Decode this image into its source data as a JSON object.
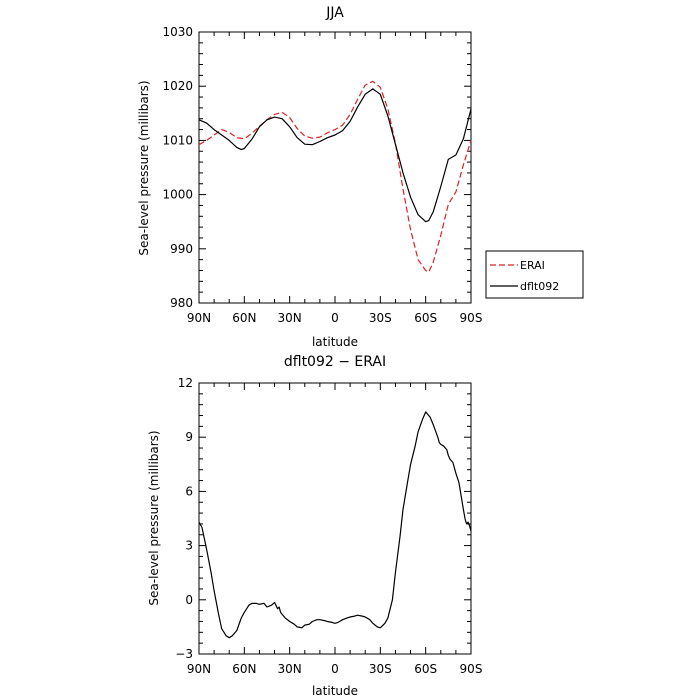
{
  "chart_data": [
    {
      "type": "line",
      "title": "JJA",
      "xlabel": "latitude",
      "ylabel": "Sea-level pressure (millibars)",
      "ylim": [
        980,
        1030
      ],
      "yticks": [
        980,
        990,
        1000,
        1010,
        1020,
        1030
      ],
      "xlim": [
        90,
        -90
      ],
      "xticks": [
        90,
        60,
        30,
        0,
        -30,
        -60,
        -90
      ],
      "xtick_labels": [
        "90N",
        "60N",
        "30N",
        "0",
        "30S",
        "60S",
        "90S"
      ],
      "grid": false,
      "legend": "right",
      "series": [
        {
          "name": "ERAI",
          "color": "#dd2222",
          "dash": "dashed",
          "x": [
            90,
            85,
            80,
            75,
            70,
            65,
            60,
            55,
            50,
            45,
            40,
            35,
            30,
            25,
            20,
            15,
            10,
            5,
            0,
            -5,
            -10,
            -15,
            -20,
            -25,
            -30,
            -35,
            -40,
            -45,
            -50,
            -55,
            -60,
            -62,
            -65,
            -70,
            -75,
            -80,
            -85,
            -90
          ],
          "y": [
            1009.2,
            1010.0,
            1011.0,
            1012.0,
            1011.5,
            1010.5,
            1010.3,
            1011.3,
            1012.6,
            1013.8,
            1014.8,
            1015.2,
            1014.2,
            1012.2,
            1010.8,
            1010.4,
            1010.6,
            1011.4,
            1012.0,
            1012.8,
            1014.8,
            1017.6,
            1020.2,
            1020.9,
            1019.8,
            1015.8,
            1009.5,
            1001.0,
            993.5,
            988.0,
            986.0,
            985.7,
            987.5,
            992.5,
            998.2,
            1000.5,
            1005.5,
            1010.0
          ]
        },
        {
          "name": "dflt092",
          "color": "#000000",
          "dash": "solid",
          "x": [
            90,
            85,
            80,
            75,
            70,
            65,
            62,
            60,
            55,
            50,
            45,
            40,
            35,
            30,
            25,
            20,
            15,
            10,
            5,
            0,
            -5,
            -10,
            -15,
            -20,
            -25,
            -30,
            -35,
            -40,
            -45,
            -50,
            -55,
            -60,
            -62,
            -65,
            -70,
            -75,
            -80,
            -85,
            -90
          ],
          "y": [
            1013.8,
            1013.2,
            1012.0,
            1011.0,
            1010.0,
            1008.7,
            1008.3,
            1008.5,
            1010.2,
            1012.5,
            1013.8,
            1014.3,
            1014.0,
            1012.5,
            1010.5,
            1009.3,
            1009.2,
            1009.8,
            1010.5,
            1011.0,
            1011.8,
            1013.5,
            1016.2,
            1018.5,
            1019.5,
            1018.5,
            1014.5,
            1009.3,
            1004.0,
            999.5,
            996.3,
            995.0,
            995.2,
            996.8,
            1001.5,
            1006.5,
            1007.3,
            1010.3,
            1015.8
          ]
        }
      ]
    },
    {
      "type": "line",
      "title": "dflt092 − ERAI",
      "xlabel": "latitude",
      "ylabel": "Sea-level pressure (millibars)",
      "ylim": [
        -3,
        12
      ],
      "yticks": [
        -3,
        0,
        3,
        6,
        9,
        12
      ],
      "ytick_labels": [
        "−3",
        "0",
        "3",
        "6",
        "9",
        "12"
      ],
      "xlim": [
        90,
        -90
      ],
      "xticks": [
        90,
        60,
        30,
        0,
        -30,
        -60,
        -90
      ],
      "xtick_labels": [
        "90N",
        "60N",
        "30N",
        "0",
        "30S",
        "60S",
        "90S"
      ],
      "grid": false,
      "series": [
        {
          "color": "#000000",
          "dash": "solid",
          "x": [
            90,
            88,
            85,
            82,
            80,
            77,
            75,
            72,
            70,
            68,
            65,
            62,
            60,
            57,
            55,
            52,
            50,
            47,
            45,
            42,
            40,
            38,
            37,
            36,
            35,
            33,
            30,
            27,
            25,
            22,
            20,
            17,
            15,
            12,
            10,
            7,
            5,
            2,
            0,
            -2,
            -5,
            -8,
            -10,
            -13,
            -15,
            -18,
            -20,
            -23,
            -25,
            -28,
            -30,
            -33,
            -35,
            -38,
            -40,
            -43,
            -45,
            -48,
            -50,
            -53,
            -55,
            -58,
            -60,
            -63,
            -65,
            -68,
            -69,
            -70,
            -72,
            -74,
            -75,
            -76,
            -78,
            -80,
            -82,
            -83,
            -84,
            -85,
            -86,
            -87,
            -88,
            -89,
            -90
          ],
          "y": [
            4.3,
            4.0,
            2.8,
            1.5,
            0.5,
            -0.8,
            -1.6,
            -2.0,
            -2.1,
            -2.0,
            -1.7,
            -1.0,
            -0.7,
            -0.3,
            -0.2,
            -0.2,
            -0.25,
            -0.2,
            -0.4,
            -0.3,
            -0.15,
            -0.5,
            -0.4,
            -0.7,
            -0.8,
            -1.0,
            -1.2,
            -1.35,
            -1.5,
            -1.55,
            -1.4,
            -1.35,
            -1.2,
            -1.1,
            -1.1,
            -1.15,
            -1.2,
            -1.25,
            -1.3,
            -1.25,
            -1.1,
            -1.0,
            -0.95,
            -0.9,
            -0.85,
            -0.9,
            -0.95,
            -1.1,
            -1.3,
            -1.5,
            -1.55,
            -1.3,
            -1.0,
            0.0,
            1.5,
            3.5,
            5.0,
            6.5,
            7.5,
            8.5,
            9.3,
            10.0,
            10.4,
            10.1,
            9.7,
            9.0,
            8.7,
            8.6,
            8.5,
            8.3,
            8.0,
            7.8,
            7.6,
            7.0,
            6.5,
            6.0,
            5.5,
            5.0,
            4.5,
            4.2,
            4.3,
            4.1,
            3.8
          ]
        }
      ]
    }
  ]
}
